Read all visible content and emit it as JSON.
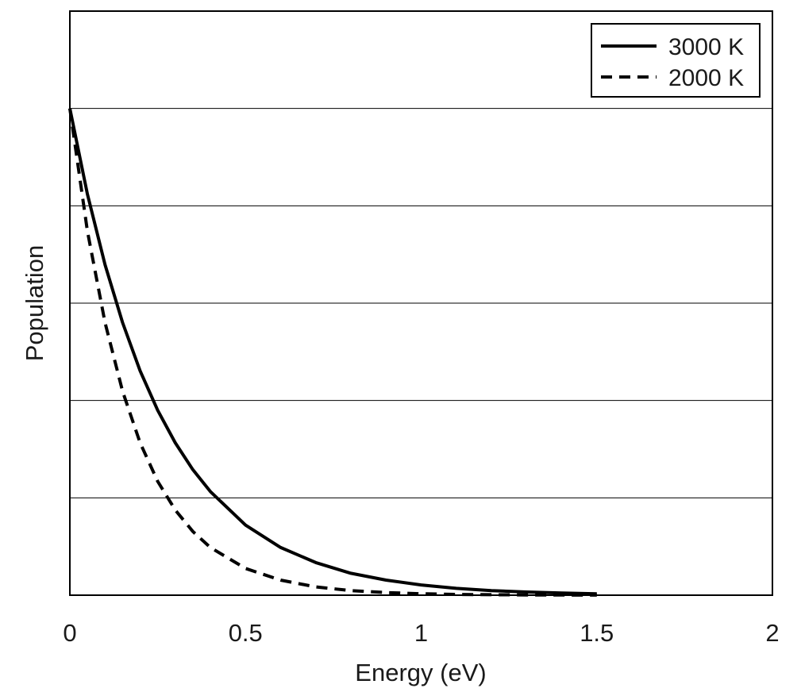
{
  "chart_data": {
    "type": "line",
    "title": "",
    "xlabel": "Energy (eV)",
    "ylabel": "Population",
    "xlim": [
      0,
      2
    ],
    "ylim": [
      0,
      1.2
    ],
    "x_ticks": [
      "0",
      "0.5",
      "1",
      "1.5",
      "2"
    ],
    "y_gridlines": [
      0.2,
      0.4,
      0.6,
      0.8,
      1.0
    ],
    "y_tick_labels_shown": false,
    "grid": "horizontal",
    "legend_position": "top-right",
    "series": [
      {
        "name": "3000 K",
        "style": "solid",
        "color": "#000000",
        "x": [
          0,
          0.05,
          0.1,
          0.15,
          0.2,
          0.25,
          0.3,
          0.35,
          0.4,
          0.5,
          0.6,
          0.7,
          0.8,
          0.9,
          1.0,
          1.1,
          1.2,
          1.3,
          1.4,
          1.5
        ],
        "y": [
          1.0,
          0.824,
          0.679,
          0.56,
          0.461,
          0.38,
          0.313,
          0.258,
          0.213,
          0.144,
          0.098,
          0.067,
          0.045,
          0.031,
          0.021,
          0.014,
          0.0095,
          0.0065,
          0.0044,
          0.003
        ]
      },
      {
        "name": "2000 K",
        "style": "dashed",
        "color": "#000000",
        "x": [
          0,
          0.05,
          0.1,
          0.15,
          0.2,
          0.25,
          0.3,
          0.35,
          0.4,
          0.5,
          0.6,
          0.7,
          0.8,
          0.9,
          1.0,
          1.1,
          1.2,
          1.3,
          1.4,
          1.5
        ],
        "y": [
          1.0,
          0.748,
          0.56,
          0.419,
          0.313,
          0.234,
          0.175,
          0.131,
          0.098,
          0.055,
          0.031,
          0.017,
          0.0095,
          0.0053,
          0.003,
          0.0017,
          0.0009,
          0.0005,
          0.0003,
          0.0002
        ]
      }
    ]
  }
}
